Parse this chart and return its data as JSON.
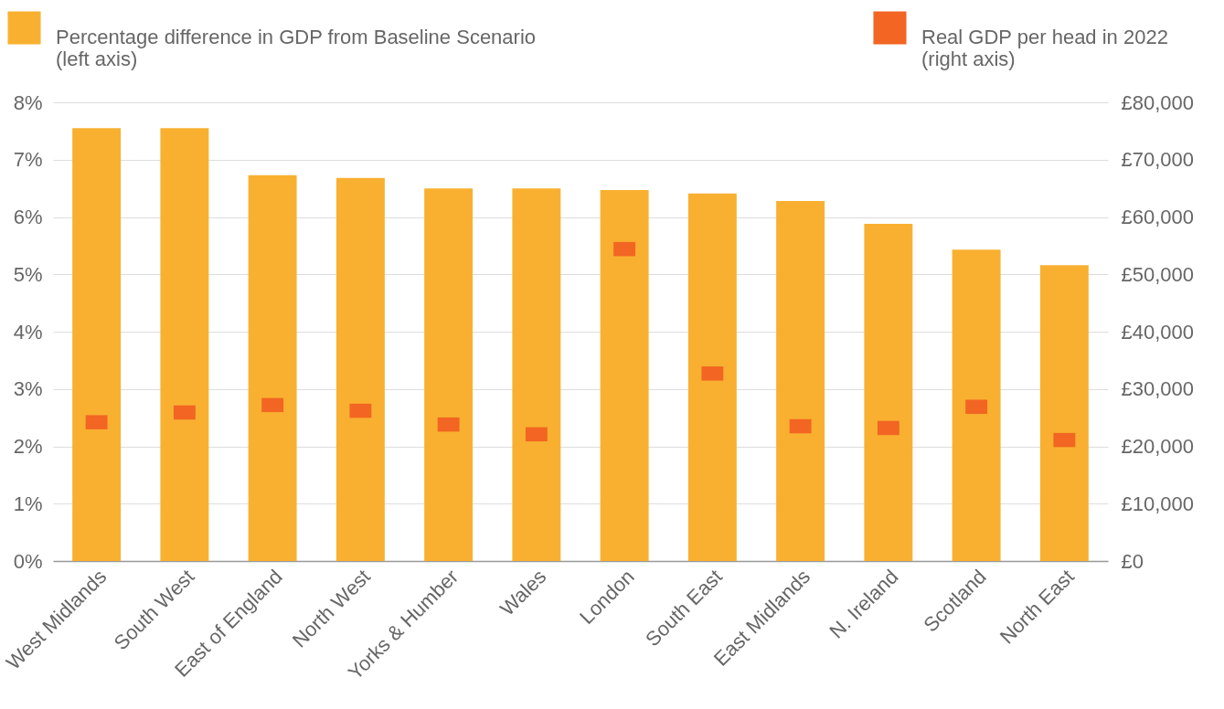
{
  "chart_data": {
    "type": "bar",
    "categories": [
      "West Midlands",
      "South West",
      "East of England",
      "North West",
      "Yorks & Humber",
      "Wales",
      "London",
      "South East",
      "East Midlands",
      "N. Ireland",
      "Scotland",
      "North East"
    ],
    "series": [
      {
        "name": "Percentage difference in GDP from Baseline Scenario (left axis)",
        "color": "#f9b031",
        "values": [
          7.55,
          7.55,
          6.73,
          6.68,
          6.5,
          6.5,
          6.47,
          6.41,
          6.28,
          5.88,
          5.43,
          5.16
        ]
      },
      {
        "name": "Real GDP per head in 2022 (right axis)",
        "type": "scatter",
        "axis": "y2",
        "marker": "square",
        "color": "#f26522",
        "values": [
          24200,
          25900,
          27200,
          26200,
          23800,
          22100,
          54400,
          32700,
          23500,
          23200,
          26900,
          21100
        ]
      }
    ],
    "ylim": [
      0,
      8
    ],
    "yticks": [
      {
        "value": 0,
        "label": "0%"
      },
      {
        "value": 1,
        "label": "1%"
      },
      {
        "value": 2,
        "label": "2%"
      },
      {
        "value": 3,
        "label": "3%"
      },
      {
        "value": 4,
        "label": "4%"
      },
      {
        "value": 5,
        "label": "5%"
      },
      {
        "value": 6,
        "label": "6%"
      },
      {
        "value": 7,
        "label": "7%"
      },
      {
        "value": 8,
        "label": "8%"
      }
    ],
    "y2lim": [
      0,
      80000
    ],
    "y2ticks": [
      {
        "value": 0,
        "label": "£0"
      },
      {
        "value": 10000,
        "label": "£10,000"
      },
      {
        "value": 20000,
        "label": "£20,000"
      },
      {
        "value": 30000,
        "label": "£30,000"
      },
      {
        "value": 40000,
        "label": "£40,000"
      },
      {
        "value": 50000,
        "label": "£50,000"
      },
      {
        "value": 60000,
        "label": "£60,000"
      },
      {
        "value": 70000,
        "label": "£70,000"
      },
      {
        "value": 80000,
        "label": "£80,000"
      }
    ],
    "grid": "y",
    "legend": "top"
  }
}
